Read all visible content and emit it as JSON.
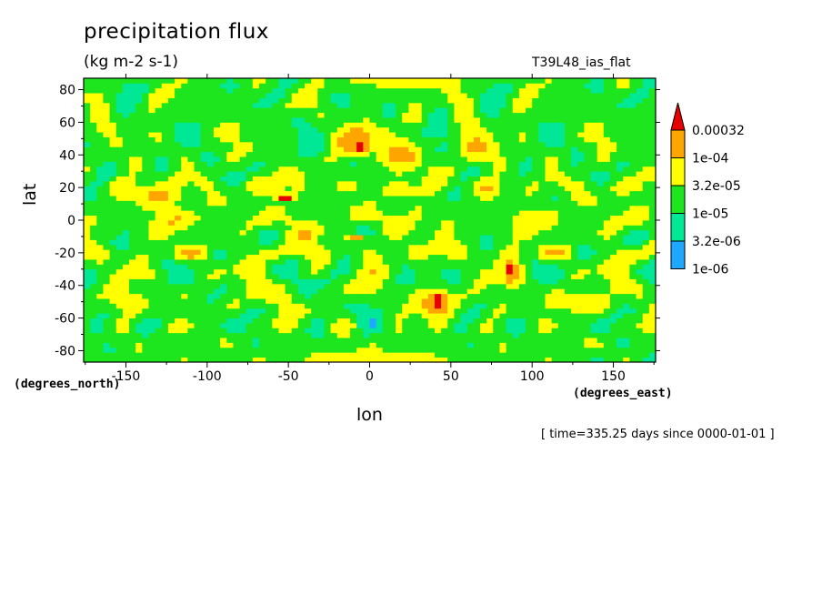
{
  "chart_data": {
    "type": "heatmap",
    "title": "precipitation flux",
    "subtitle": "(kg m-2 s-1)",
    "model_label": "T39L48_ias_flat",
    "xlabel": "lon",
    "ylabel": "lat",
    "x_units_label": "(degrees_east)",
    "y_units_label": "(degrees_north)",
    "timestamp": "[ time=335.25 days since 0000-01-01 ]",
    "xlim": [
      -176,
      176
    ],
    "ylim": [
      -87,
      87
    ],
    "x_ticks": [
      -150,
      -100,
      -50,
      0,
      50,
      100,
      150
    ],
    "x_tick_labels": [
      "-150",
      "-100",
      "-50",
      "0",
      "50",
      "100",
      "150"
    ],
    "y_ticks": [
      -80,
      -60,
      -40,
      -20,
      0,
      20,
      40,
      60,
      80
    ],
    "y_tick_labels": [
      "-80",
      "-60",
      "-40",
      "-20",
      "0",
      "20",
      "40",
      "60",
      "80"
    ],
    "colorbar": {
      "levels": [
        "1e-06",
        "3.2e-06",
        "1e-05",
        "3.2e-05",
        "1e-04",
        "0.00032"
      ],
      "colors": [
        "#ffffff",
        "#1ea8ff",
        "#00e896",
        "#1ee61e",
        "#ffff00",
        "#ffa500",
        "#e60000"
      ]
    },
    "features": [
      {
        "kind": "band",
        "lat": 0,
        "width": 8,
        "level": 4
      },
      {
        "kind": "band",
        "lat": 20,
        "width": 6,
        "level": 4
      },
      {
        "kind": "band",
        "lat": -20,
        "width": 5,
        "level": 4
      },
      {
        "kind": "blob",
        "lon": -10,
        "lat": 50,
        "rx": 14,
        "ry": 8,
        "level": 5
      },
      {
        "kind": "blob",
        "lon": -5,
        "lat": 45,
        "rx": 6,
        "ry": 4,
        "level": 6
      },
      {
        "kind": "blob",
        "lon": 40,
        "lat": -50,
        "rx": 12,
        "ry": 8,
        "level": 5
      },
      {
        "kind": "blob",
        "lon": 42,
        "lat": -50,
        "rx": 5,
        "ry": 6,
        "level": 6
      },
      {
        "kind": "blob",
        "lon": 88,
        "lat": -32,
        "rx": 6,
        "ry": 10,
        "level": 5
      },
      {
        "kind": "blob",
        "lon": 87,
        "lat": -30,
        "rx": 2,
        "ry": 5,
        "level": 6
      },
      {
        "kind": "blob",
        "lon": -52,
        "lat": 14,
        "rx": 6,
        "ry": 2,
        "level": 6
      },
      {
        "kind": "blob",
        "lon": -8,
        "lat": -11,
        "rx": 6,
        "ry": 2,
        "level": 6
      },
      {
        "kind": "blob",
        "lon": -130,
        "lat": 15,
        "rx": 12,
        "ry": 6,
        "level": 5
      },
      {
        "kind": "blob",
        "lon": 20,
        "lat": 40,
        "rx": 12,
        "ry": 10,
        "level": 5
      },
      {
        "kind": "blob",
        "lon": 65,
        "lat": 45,
        "rx": 10,
        "ry": 8,
        "level": 5
      },
      {
        "kind": "blob",
        "lon": -60,
        "lat": -45,
        "rx": 15,
        "ry": 8,
        "level": 4
      },
      {
        "kind": "blob",
        "lon": -150,
        "lat": -50,
        "rx": 15,
        "ry": 8,
        "level": 4
      },
      {
        "kind": "blob",
        "lon": 130,
        "lat": -50,
        "rx": 20,
        "ry": 8,
        "level": 4
      },
      {
        "kind": "blob",
        "lon": 0,
        "lat": -85,
        "rx": 50,
        "ry": 5,
        "level": 4
      },
      {
        "kind": "blob",
        "lon": 20,
        "lat": 85,
        "rx": 40,
        "ry": 4,
        "level": 4
      }
    ]
  }
}
